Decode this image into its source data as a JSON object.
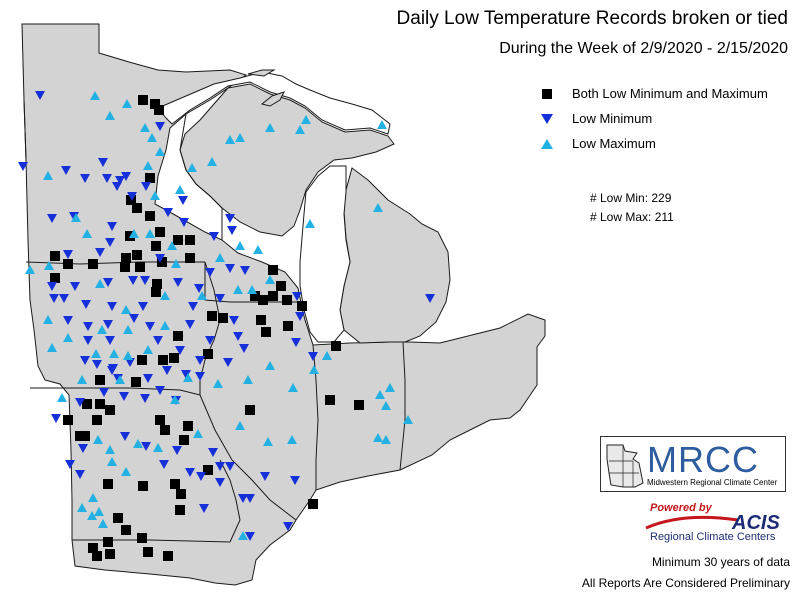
{
  "title": "Daily Low Temperature Records broken or tied",
  "subtitle": "During the Week of 2/9/2020 - 2/15/2020",
  "legend": {
    "both_label": "Both Low Minimum and Maximum",
    "min_label": "Low Minimum",
    "max_label": "Low Maximum"
  },
  "counts": {
    "low_min": "# Low Min: 229",
    "low_max": "# Low Max: 211"
  },
  "logo": {
    "mrcc_name": "MRCC",
    "mrcc_full": "Midwestern Regional Climate Center",
    "powered_by": "Powered by",
    "acis_name": "ACIS",
    "acis_full": "Regional Climate Centers"
  },
  "footnotes": {
    "min_years": "Minimum 30 years of data",
    "preliminary": "All Reports Are Considered Preliminary"
  },
  "colors": {
    "land": "#d3d3d3",
    "water": "#ffffff",
    "borders": "#1a1a1a",
    "both_marker": "#000000",
    "min_marker": "#1530d8",
    "max_marker": "#23b1e3"
  },
  "icons": {
    "both": "black-square-icon",
    "min": "blue-down-triangle-icon",
    "max": "cyan-up-triangle-icon"
  }
}
